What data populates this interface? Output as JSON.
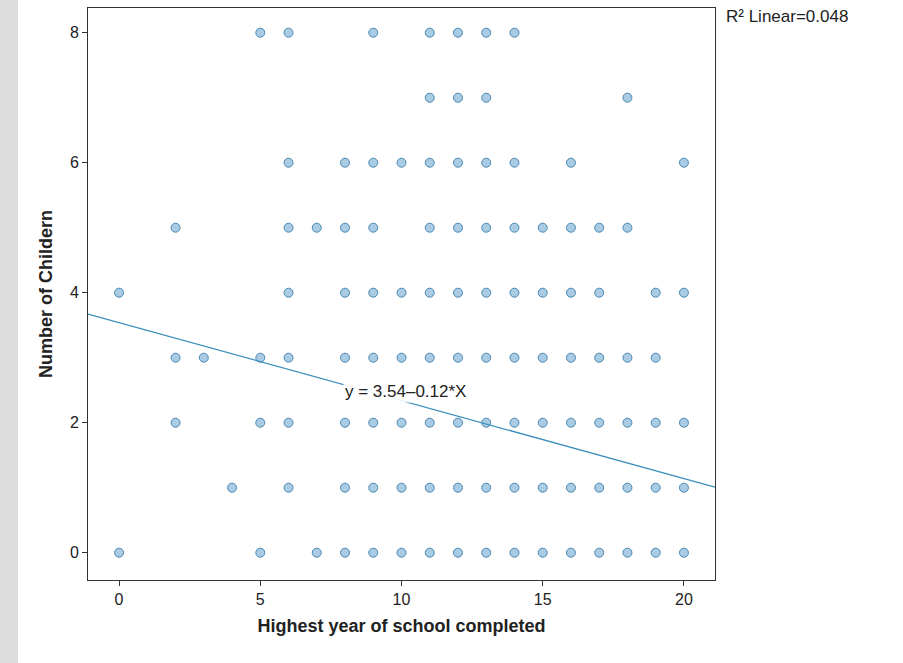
{
  "chart_data": {
    "type": "scatter",
    "x_label": "Highest year of school completed",
    "y_label": "Number of Childern",
    "x": [
      5,
      6,
      9,
      11,
      12,
      13,
      14,
      11,
      12,
      13,
      18,
      6,
      8,
      9,
      10,
      11,
      12,
      13,
      14,
      16,
      20,
      2,
      6,
      7,
      8,
      9,
      11,
      12,
      13,
      14,
      15,
      16,
      17,
      18,
      0,
      6,
      8,
      9,
      10,
      11,
      12,
      13,
      14,
      15,
      16,
      17,
      19,
      20,
      2,
      3,
      5,
      6,
      8,
      9,
      10,
      11,
      12,
      13,
      14,
      15,
      16,
      17,
      18,
      19,
      2,
      5,
      6,
      8,
      9,
      10,
      11,
      12,
      13,
      14,
      15,
      16,
      17,
      18,
      19,
      20,
      4,
      6,
      8,
      9,
      10,
      11,
      12,
      13,
      14,
      15,
      16,
      17,
      18,
      19,
      20,
      0,
      5,
      7,
      8,
      9,
      10,
      11,
      12,
      13,
      14,
      15,
      16,
      17,
      18,
      19,
      20
    ],
    "values": [
      8,
      8,
      8,
      8,
      8,
      8,
      8,
      7,
      7,
      7,
      7,
      6,
      6,
      6,
      6,
      6,
      6,
      6,
      6,
      6,
      6,
      5,
      5,
      5,
      5,
      5,
      5,
      5,
      5,
      5,
      5,
      5,
      5,
      5,
      4,
      4,
      4,
      4,
      4,
      4,
      4,
      4,
      4,
      4,
      4,
      4,
      4,
      4,
      3,
      3,
      3,
      3,
      3,
      3,
      3,
      3,
      3,
      3,
      3,
      3,
      3,
      3,
      3,
      3,
      2,
      2,
      2,
      2,
      2,
      2,
      2,
      2,
      2,
      2,
      2,
      2,
      2,
      2,
      2,
      2,
      1,
      1,
      1,
      1,
      1,
      1,
      1,
      1,
      1,
      1,
      1,
      1,
      1,
      1,
      1,
      0,
      0,
      0,
      0,
      0,
      0,
      0,
      0,
      0,
      0,
      0,
      0,
      0,
      0,
      0,
      0
    ],
    "color": "#a9cbe3",
    "marker": "circle",
    "trend_line": {
      "intercept": 3.54,
      "slope": -0.12,
      "color": "#3b8ebb",
      "label": "y = 3.54–0.12*X"
    },
    "annotations": [
      "R² Linear=0.048"
    ],
    "xlim": [
      -1.1,
      21.1
    ],
    "xticks": [
      0,
      5,
      10,
      15,
      20
    ],
    "ylim": [
      -0.42,
      8.38
    ],
    "yticks": [
      0,
      2,
      4,
      6,
      8
    ],
    "grid": false
  }
}
